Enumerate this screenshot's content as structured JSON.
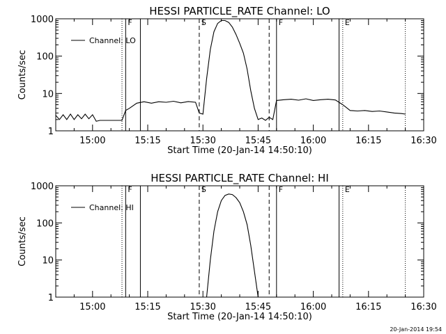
{
  "chart_data": [
    {
      "type": "line",
      "title": "HESSI PARTICLE_RATE Channel: LO",
      "xlabel": "Start Time (20-Jan-14 14:50:10)",
      "ylabel": "Counts/sec",
      "xlim": [
        "14:50",
        "16:30"
      ],
      "ylim": [
        1,
        1000
      ],
      "yscale": "log",
      "x_ticks": [
        "15:00",
        "15:15",
        "15:30",
        "15:45",
        "16:00",
        "16:15",
        "16:30"
      ],
      "y_ticks": [
        "1",
        "10",
        "100",
        "1000"
      ],
      "legend": {
        "position": "top-left",
        "entries": [
          "Channel: LO"
        ]
      },
      "markers": [
        {
          "time": "15:08",
          "style": "dotted",
          "label": ""
        },
        {
          "time": "15:09",
          "style": "solid",
          "label": "F"
        },
        {
          "time": "15:13",
          "style": "solid",
          "label": ""
        },
        {
          "time": "15:29",
          "style": "dashed",
          "label": "S"
        },
        {
          "time": "15:48",
          "style": "dashed",
          "label": ""
        },
        {
          "time": "15:50",
          "style": "solid",
          "label": "F"
        },
        {
          "time": "16:07",
          "style": "solid",
          "label": ""
        },
        {
          "time": "16:08",
          "style": "dotted",
          "label": "E"
        },
        {
          "time": "16:25",
          "style": "dotted",
          "label": ""
        }
      ],
      "series": [
        {
          "name": "Channel: LO",
          "x": [
            "14:50",
            "14:51",
            "14:52",
            "14:53",
            "14:54",
            "14:55",
            "14:56",
            "14:57",
            "14:58",
            "14:59",
            "15:00",
            "15:01",
            "15:02",
            "15:03",
            "15:04",
            "15:05",
            "15:06",
            "15:07",
            "15:08",
            "15:09",
            "15:10",
            "15:12",
            "15:14",
            "15:16",
            "15:18",
            "15:20",
            "15:22",
            "15:24",
            "15:26",
            "15:28",
            "15:29",
            "15:30",
            "15:31",
            "15:32",
            "15:33",
            "15:34",
            "15:35",
            "15:36",
            "15:37",
            "15:38",
            "15:39",
            "15:40",
            "15:41",
            "15:42",
            "15:43",
            "15:44",
            "15:45",
            "15:46",
            "15:47",
            "15:48",
            "15:49",
            "15:50",
            "15:52",
            "15:54",
            "15:56",
            "15:58",
            "16:00",
            "16:02",
            "16:04",
            "16:06",
            "16:08",
            "16:09",
            "16:10",
            "16:12",
            "16:14",
            "16:16",
            "16:18",
            "16:20",
            "16:22",
            "16:24",
            "16:25"
          ],
          "y": [
            2.6,
            2.0,
            2.7,
            2.0,
            2.8,
            2.0,
            2.7,
            2.1,
            2.8,
            2.1,
            2.7,
            1.8,
            1.9,
            1.9,
            1.9,
            1.9,
            1.9,
            1.9,
            1.9,
            3.5,
            4.0,
            5.5,
            6.0,
            5.5,
            6.0,
            5.8,
            6.2,
            5.6,
            6.1,
            5.8,
            3.0,
            2.8,
            25,
            150,
            450,
            750,
            900,
            900,
            800,
            600,
            380,
            220,
            120,
            45,
            12,
            4,
            2.0,
            2.2,
            1.9,
            2.3,
            2.0,
            6.5,
            6.8,
            7.0,
            6.6,
            7.2,
            6.5,
            6.8,
            7.0,
            6.7,
            5.0,
            4.2,
            3.5,
            3.4,
            3.5,
            3.3,
            3.4,
            3.2,
            3.0,
            2.9,
            2.8
          ]
        }
      ]
    },
    {
      "type": "line",
      "title": "HESSI PARTICLE_RATE Channel: HI",
      "xlabel": "Start Time (20-Jan-14 14:50:10)",
      "ylabel": "Counts/sec",
      "xlim": [
        "14:50",
        "16:30"
      ],
      "ylim": [
        1,
        1000
      ],
      "yscale": "log",
      "x_ticks": [
        "15:00",
        "15:15",
        "15:30",
        "15:45",
        "16:00",
        "16:15",
        "16:30"
      ],
      "y_ticks": [
        "1",
        "10",
        "100",
        "1000"
      ],
      "legend": {
        "position": "top-left",
        "entries": [
          "Channel: HI"
        ]
      },
      "markers": [
        {
          "time": "15:08",
          "style": "dotted",
          "label": ""
        },
        {
          "time": "15:09",
          "style": "solid",
          "label": "F"
        },
        {
          "time": "15:13",
          "style": "solid",
          "label": ""
        },
        {
          "time": "15:29",
          "style": "dashed",
          "label": "S"
        },
        {
          "time": "15:48",
          "style": "dashed",
          "label": ""
        },
        {
          "time": "15:50",
          "style": "solid",
          "label": "F"
        },
        {
          "time": "16:07",
          "style": "solid",
          "label": ""
        },
        {
          "time": "16:08",
          "style": "dotted",
          "label": "E"
        },
        {
          "time": "16:25",
          "style": "dotted",
          "label": ""
        }
      ],
      "series": [
        {
          "name": "Channel: HI",
          "x": [
            "15:31",
            "15:32",
            "15:33",
            "15:34",
            "15:35",
            "15:36",
            "15:37",
            "15:38",
            "15:39",
            "15:40",
            "15:41",
            "15:42",
            "15:43",
            "15:44",
            "15:45"
          ],
          "y": [
            1.0,
            10,
            60,
            200,
            400,
            550,
            600,
            580,
            480,
            350,
            200,
            90,
            25,
            5,
            1.0
          ]
        }
      ]
    }
  ],
  "footer": {
    "timestamp": "20-Jan-2014 19:54"
  }
}
